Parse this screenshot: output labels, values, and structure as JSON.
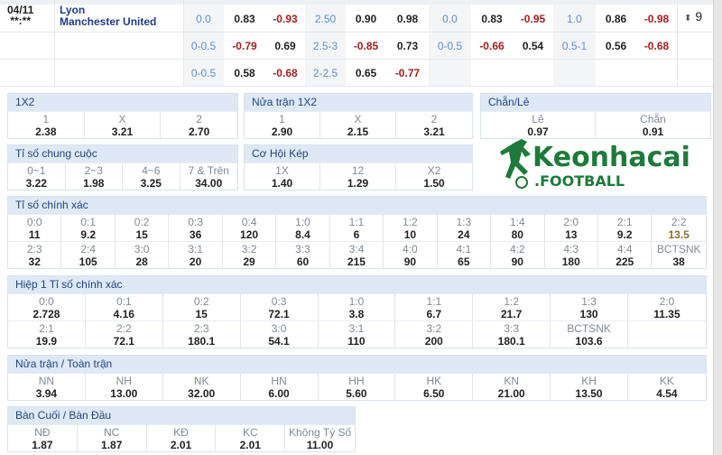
{
  "match": {
    "date": "04/11",
    "time": "**:**",
    "home": "Lyon",
    "away": "Manchester United",
    "count": "9",
    "count_icon": "sort-arrows-icon"
  },
  "odds_rows": [
    [
      "0.0",
      "0.83",
      "-0.93",
      "2.50",
      "0.90",
      "0.98",
      "0.0",
      "0.83",
      "-0.95",
      "1.0",
      "0.86",
      "-0.98"
    ],
    [
      "0-0.5",
      "-0.79",
      "0.69",
      "2.5-3",
      "-0.85",
      "0.73",
      "0-0.5",
      "-0.66",
      "0.54",
      "0.5-1",
      "0.56",
      "-0.68"
    ],
    [
      "0-0.5",
      "0.58",
      "-0.68",
      "2-2.5",
      "0.65",
      "-0.77",
      "",
      "",
      "",
      "",
      "",
      ""
    ]
  ],
  "colors": {
    "line": "#5b8fd6",
    "negative": "#a61e1e",
    "header_bg": "#dfe9f5",
    "header_text": "#1f4380",
    "logo_green": "#1e7a3a"
  },
  "panels": [
    {
      "title": "1X2",
      "items": [
        [
          "1",
          "2.38"
        ],
        [
          "X",
          "3.21"
        ],
        [
          "2",
          "2.70"
        ]
      ]
    },
    {
      "title": "Nửa trận 1X2",
      "items": [
        [
          "1",
          "2.90"
        ],
        [
          "X",
          "2.15"
        ],
        [
          "2",
          "3.21"
        ]
      ]
    },
    {
      "title": "Chẵn/Lẻ",
      "items": [
        [
          "Lẻ",
          "0.97"
        ],
        [
          "Chẵn",
          "0.91"
        ]
      ]
    },
    {
      "title": "Tỉ số chung cuộc",
      "items": [
        [
          "0~1",
          "3.22"
        ],
        [
          "2~3",
          "1.98"
        ],
        [
          "4~6",
          "3.25"
        ],
        [
          "7 & Trên",
          "34.00"
        ]
      ]
    },
    {
      "title": "Cơ Hội Kép",
      "items": [
        [
          "1X",
          "1.40"
        ],
        [
          "12",
          "1.29"
        ],
        [
          "X2",
          "1.50"
        ]
      ]
    },
    {
      "title": "Tỉ số chính xác",
      "items": [
        [
          "0:0",
          "11"
        ],
        [
          "0:1",
          "9.2"
        ],
        [
          "0:2",
          "15"
        ],
        [
          "0:3",
          "36"
        ],
        [
          "0:4",
          "120"
        ],
        [
          "1:0",
          "8.4"
        ],
        [
          "1:1",
          "6"
        ],
        [
          "1:2",
          "10"
        ],
        [
          "1:3",
          "24"
        ],
        [
          "1:4",
          "80"
        ],
        [
          "2:0",
          "13"
        ],
        [
          "2:1",
          "9.2"
        ],
        [
          "2:2",
          "13.5"
        ],
        [
          "2:3",
          "32"
        ],
        [
          "2:4",
          "105"
        ],
        [
          "3:0",
          "28"
        ],
        [
          "3:1",
          "20"
        ],
        [
          "3:2",
          "29"
        ],
        [
          "3:3",
          "60"
        ],
        [
          "3:4",
          "215"
        ],
        [
          "4:0",
          "90"
        ],
        [
          "4:1",
          "65"
        ],
        [
          "4:2",
          "90"
        ],
        [
          "4:3",
          "180"
        ],
        [
          "4:4",
          "225"
        ],
        [
          "BCTSNK",
          "38"
        ]
      ]
    },
    {
      "title": "Hiệp 1 Tỉ số chính xác",
      "items": [
        [
          "0:0",
          "2.728"
        ],
        [
          "0:1",
          "4.16"
        ],
        [
          "0:2",
          "15"
        ],
        [
          "0:3",
          "72.1"
        ],
        [
          "1:0",
          "3.8"
        ],
        [
          "1:1",
          "6.7"
        ],
        [
          "1:2",
          "21.7"
        ],
        [
          "1:3",
          "130"
        ],
        [
          "2:0",
          "11.35"
        ],
        [
          "2:1",
          "19.9"
        ],
        [
          "2:2",
          "72.1"
        ],
        [
          "2:3",
          "180.1"
        ],
        [
          "3:0",
          "54.1"
        ],
        [
          "3:1",
          "110"
        ],
        [
          "3:2",
          "200"
        ],
        [
          "3:3",
          "180.1"
        ],
        [
          "BCTSNK",
          "103.6"
        ],
        [
          "",
          ""
        ]
      ]
    },
    {
      "title": "Nửa trận / Toàn trận",
      "items": [
        [
          "NN",
          "3.94"
        ],
        [
          "NH",
          "13.00"
        ],
        [
          "NK",
          "32.00"
        ],
        [
          "HN",
          "6.00"
        ],
        [
          "HH",
          "5.60"
        ],
        [
          "HK",
          "6.50"
        ],
        [
          "KN",
          "21.00"
        ],
        [
          "KH",
          "13.50"
        ],
        [
          "KK",
          "4.54"
        ]
      ]
    },
    {
      "title": "Bàn Cuối / Bàn Đầu",
      "items": [
        [
          "NĐ",
          "1.87"
        ],
        [
          "NC",
          "1.87"
        ],
        [
          "KĐ",
          "2.01"
        ],
        [
          "KC",
          "2.01"
        ],
        [
          "Không Tý Số",
          "11.00"
        ]
      ]
    }
  ],
  "logo": {
    "text": "Keonhacai",
    "sub": ".FOOTBALL"
  }
}
